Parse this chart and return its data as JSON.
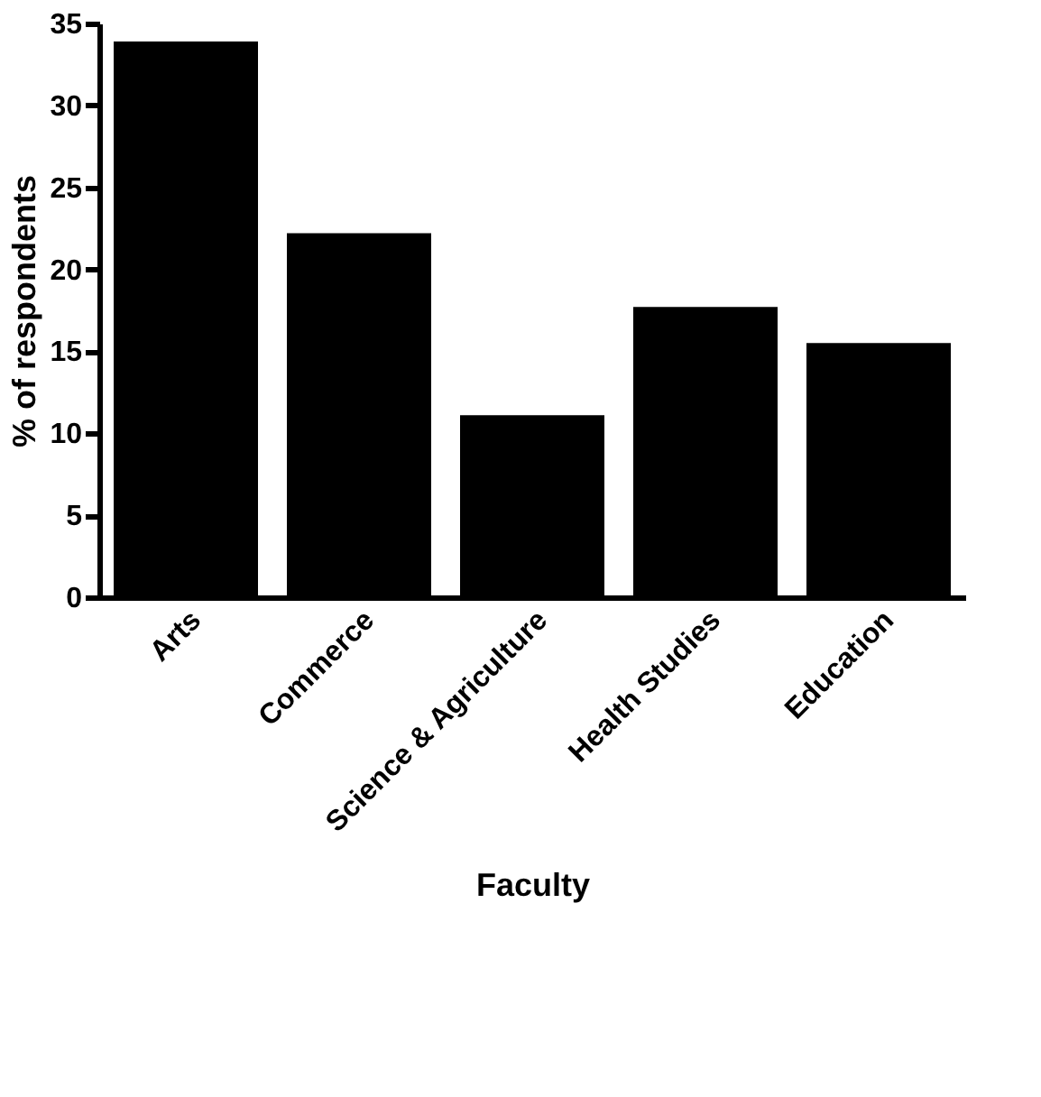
{
  "chart_data": {
    "type": "bar",
    "xlabel": "Faculty",
    "ylabel": "% of respondents",
    "categories": [
      "Arts",
      "Commerce",
      "Science & Agriculture",
      "Health Studies",
      "Education"
    ],
    "values": [
      33.9,
      22.2,
      11.1,
      17.7,
      15.5
    ],
    "color": "#000000",
    "ylim": [
      0,
      35
    ],
    "yticks": [
      0,
      5,
      10,
      15,
      20,
      25,
      30,
      35
    ],
    "grid": false
  }
}
